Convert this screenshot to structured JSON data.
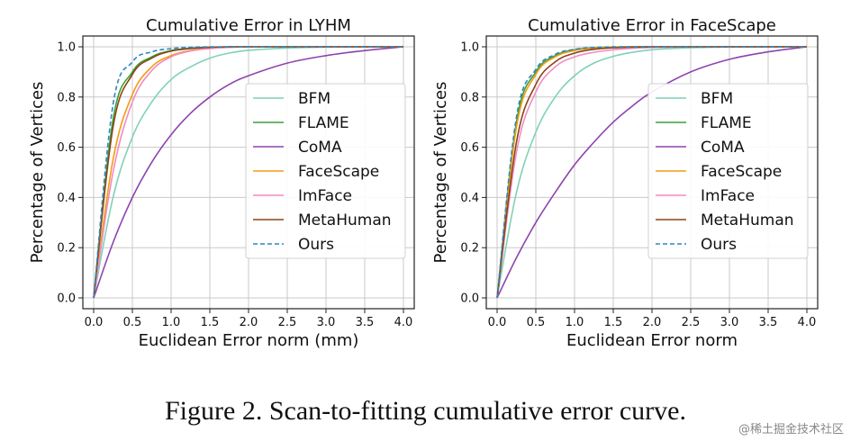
{
  "caption": "Figure 2. Scan-to-fitting cumulative error curve.",
  "watermark": "@稀土掘金技术社区",
  "series_colors": {
    "BFM": "#7fd1b9",
    "FLAME": "#3aa13a",
    "CoMA": "#8e44ad",
    "FaceScape": "#f39c12",
    "ImFace": "#f08cc4",
    "MetaHuman": "#8b4513",
    "Ours": "#2e86c1"
  },
  "chart_data": [
    {
      "type": "line",
      "title": "Cumulative Error in LYHM",
      "xlabel": "Euclidean Error norm (mm)",
      "ylabel": "Percentage of Vertices",
      "xlim": [
        0,
        4.0
      ],
      "ylim": [
        0,
        1.0
      ],
      "xticks": [
        "0.0",
        "0.5",
        "1.0",
        "1.5",
        "2.0",
        "2.5",
        "3.0",
        "3.5",
        "4.0"
      ],
      "yticks": [
        "0.0",
        "0.2",
        "0.4",
        "0.6",
        "0.8",
        "1.0"
      ],
      "grid": true,
      "legend": "right",
      "x": [
        0,
        0.25,
        0.5,
        0.75,
        1.0,
        1.25,
        1.5,
        1.75,
        2.0,
        2.5,
        3.0,
        3.5,
        4.0
      ],
      "series": [
        {
          "name": "BFM",
          "values": [
            0.0,
            0.4,
            0.64,
            0.78,
            0.87,
            0.92,
            0.955,
            0.975,
            0.986,
            0.995,
            0.999,
            1.0,
            1.0
          ]
        },
        {
          "name": "FLAME",
          "values": [
            0.0,
            0.71,
            0.9,
            0.96,
            0.985,
            0.994,
            0.998,
            1.0,
            1.0,
            1.0,
            1.0,
            1.0,
            1.0
          ]
        },
        {
          "name": "CoMA",
          "values": [
            0.0,
            0.22,
            0.4,
            0.54,
            0.65,
            0.735,
            0.8,
            0.85,
            0.885,
            0.935,
            0.965,
            0.985,
            1.0
          ]
        },
        {
          "name": "FaceScape",
          "values": [
            0.0,
            0.55,
            0.81,
            0.92,
            0.965,
            0.985,
            0.994,
            0.998,
            1.0,
            1.0,
            1.0,
            1.0,
            1.0
          ]
        },
        {
          "name": "ImFace",
          "values": [
            0.0,
            0.5,
            0.78,
            0.905,
            0.96,
            0.983,
            0.993,
            0.998,
            1.0,
            1.0,
            1.0,
            1.0,
            1.0
          ]
        },
        {
          "name": "MetaHuman",
          "values": [
            0.0,
            0.68,
            0.89,
            0.955,
            0.983,
            0.993,
            0.998,
            1.0,
            1.0,
            1.0,
            1.0,
            1.0,
            1.0
          ]
        },
        {
          "name": "Ours",
          "values": [
            0.0,
            0.77,
            0.94,
            0.98,
            0.993,
            0.998,
            1.0,
            1.0,
            1.0,
            1.0,
            1.0,
            1.0,
            1.0
          ],
          "style": "dashed"
        }
      ]
    },
    {
      "type": "line",
      "title": "Cumulative Error in FaceScape",
      "xlabel": "Euclidean Error norm",
      "ylabel": "Percentage of Vertices",
      "xlim": [
        0,
        4.0
      ],
      "ylim": [
        0,
        1.0
      ],
      "xticks": [
        "0.0",
        "0.5",
        "1.0",
        "1.5",
        "2.0",
        "2.5",
        "3.0",
        "3.5",
        "4.0"
      ],
      "yticks": [
        "0.0",
        "0.2",
        "0.4",
        "0.6",
        "0.8",
        "1.0"
      ],
      "grid": true,
      "legend": "right",
      "x": [
        0,
        0.25,
        0.5,
        0.75,
        1.0,
        1.25,
        1.5,
        1.75,
        2.0,
        2.5,
        3.0,
        3.5,
        4.0
      ],
      "series": [
        {
          "name": "BFM",
          "values": [
            0.0,
            0.42,
            0.66,
            0.8,
            0.885,
            0.935,
            0.962,
            0.978,
            0.988,
            0.996,
            0.999,
            1.0,
            1.0
          ]
        },
        {
          "name": "FLAME",
          "values": [
            0.0,
            0.7,
            0.9,
            0.965,
            0.988,
            0.996,
            0.999,
            1.0,
            1.0,
            1.0,
            1.0,
            1.0,
            1.0
          ]
        },
        {
          "name": "CoMA",
          "values": [
            0.0,
            0.16,
            0.3,
            0.42,
            0.53,
            0.62,
            0.7,
            0.765,
            0.82,
            0.9,
            0.95,
            0.98,
            1.0
          ]
        },
        {
          "name": "FaceScape",
          "values": [
            0.0,
            0.68,
            0.89,
            0.96,
            0.985,
            0.995,
            0.999,
            1.0,
            1.0,
            1.0,
            1.0,
            1.0,
            1.0
          ]
        },
        {
          "name": "ImFace",
          "values": [
            0.0,
            0.58,
            0.82,
            0.92,
            0.96,
            0.978,
            0.988,
            0.994,
            0.997,
            1.0,
            1.0,
            1.0,
            1.0
          ]
        },
        {
          "name": "MetaHuman",
          "values": [
            0.0,
            0.62,
            0.85,
            0.94,
            0.975,
            0.99,
            0.996,
            0.999,
            1.0,
            1.0,
            1.0,
            1.0,
            1.0
          ]
        },
        {
          "name": "Ours",
          "values": [
            0.0,
            0.72,
            0.91,
            0.97,
            0.99,
            0.997,
            1.0,
            1.0,
            1.0,
            1.0,
            1.0,
            1.0,
            1.0
          ],
          "style": "dashed"
        }
      ]
    }
  ]
}
